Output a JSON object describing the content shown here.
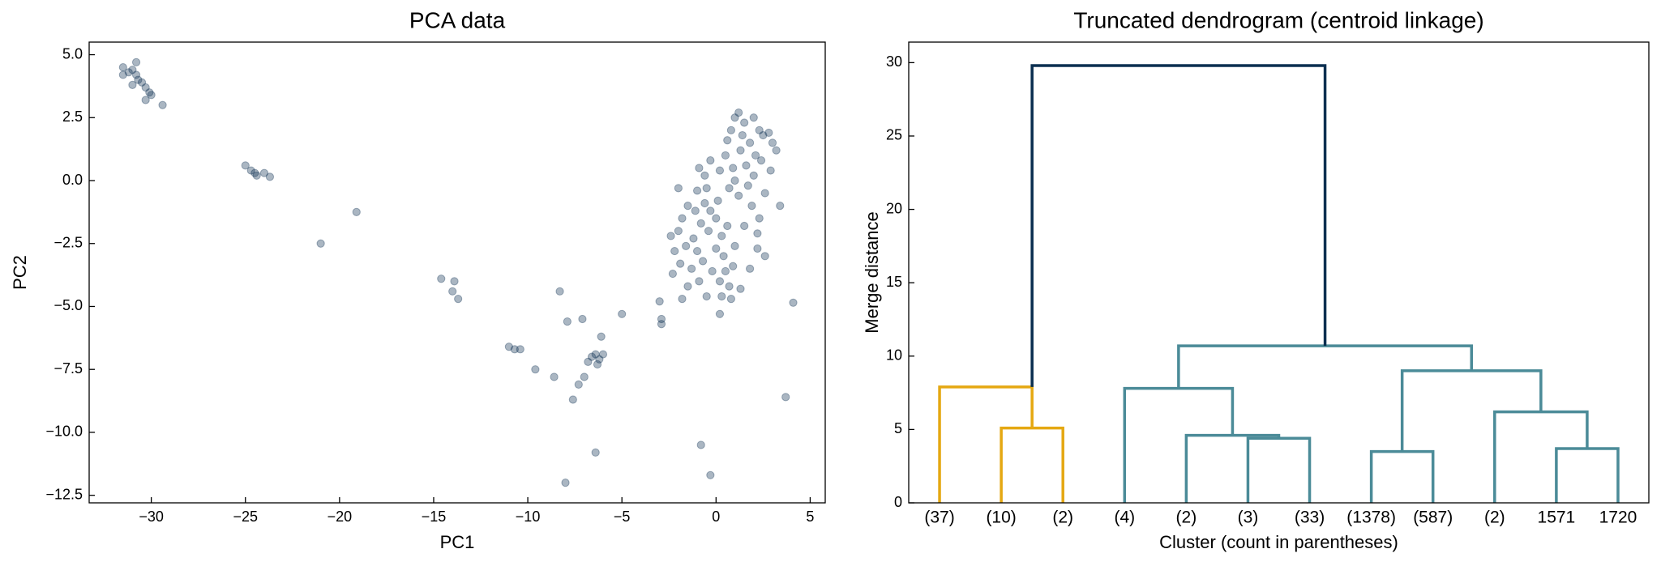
{
  "chart_data": [
    {
      "type": "scatter",
      "title": "PCA data",
      "xlabel": "PC1",
      "ylabel": "PC2",
      "color": "#0b2f50",
      "alpha": 0.35,
      "xlim": [
        -33.3,
        5.8
      ],
      "ylim": [
        -12.8,
        5.5
      ],
      "xticks": [
        {
          "value": -30,
          "label": "−30"
        },
        {
          "value": -25,
          "label": "−25"
        },
        {
          "value": -20,
          "label": "−20"
        },
        {
          "value": -15,
          "label": "−15"
        },
        {
          "value": -10,
          "label": "−10"
        },
        {
          "value": -5,
          "label": "−5"
        },
        0,
        5
      ],
      "yticks": [
        {
          "value": -12.5,
          "label": "−12.5"
        },
        {
          "value": -10,
          "label": "−10.0"
        },
        {
          "value": -7.5,
          "label": "−7.5"
        },
        {
          "value": -5,
          "label": "−5.0"
        },
        {
          "value": -2.5,
          "label": "−2.5"
        },
        {
          "value": 0,
          "label": "0.0"
        },
        {
          "value": 2.5,
          "label": "2.5"
        },
        {
          "value": 5,
          "label": "5.0"
        }
      ],
      "x": [
        -31.5,
        -31.5,
        -31,
        -30.8,
        -30.7,
        -30.5,
        -30.3,
        -30.1,
        -30,
        -30.3,
        -31,
        -29.4,
        -30.8,
        -31.2,
        -25,
        -24.7,
        -24.5,
        -24,
        -23.7,
        -24.4,
        -19.1,
        -21,
        -14.6,
        -13.9,
        -14,
        -13.7,
        -11,
        -10.7,
        -10.4,
        -9.6,
        -8.6,
        -8.3,
        -7.9,
        -7.1,
        -7.6,
        -7.3,
        -7,
        -6.6,
        -6.4,
        -6.2,
        -6,
        -6.3,
        -6.8,
        -6.1,
        -5,
        -6.4,
        -8,
        -0.8,
        -0.3,
        -2.9,
        -2.9,
        -3,
        3.7,
        4.1,
        3.4,
        2.2,
        2.6,
        1.8,
        0.5,
        1,
        1.2,
        1.5,
        0.8,
        2,
        2.3,
        1.8,
        2.5,
        2.8,
        3,
        3.2,
        2.1,
        1.3,
        0.9,
        1.6,
        2.4,
        0.2,
        0.6,
        1.4,
        2,
        1.7,
        2.6,
        1.9,
        2.3,
        1.2,
        0.7,
        -0.3,
        -0.6,
        -0.9,
        -0.5,
        0.1,
        1,
        2.9,
        2.2,
        1.5,
        -1.5,
        -1.8,
        -2,
        -1.2,
        -0.8,
        -0.3,
        0,
        -0.4,
        -1,
        -1.6,
        -2.2,
        -1.9,
        -1.3,
        -0.7,
        0,
        0.3,
        0.6,
        0.4,
        -0.2,
        0.2,
        0.7,
        -0.9,
        -1.5,
        -2.3,
        -1.1,
        0.5,
        1,
        0.9,
        1.3,
        -2.4,
        -0.6,
        -1,
        0.3,
        0.8,
        -0.5,
        -2,
        0.2,
        -1.8
      ],
      "values": [
        4.5,
        4.2,
        4.4,
        4.7,
        4,
        3.9,
        3.7,
        3.5,
        3.4,
        3.2,
        3.8,
        3,
        4.2,
        4.3,
        0.6,
        0.4,
        0.3,
        0.3,
        0.15,
        0.2,
        -1.25,
        -2.5,
        -3.9,
        -4,
        -4.4,
        -4.7,
        -6.6,
        -6.7,
        -6.7,
        -7.5,
        -7.8,
        -4.4,
        -5.6,
        -5.5,
        -8.7,
        -8.1,
        -7.8,
        -7,
        -6.9,
        -7.1,
        -6.9,
        -7.3,
        -7.2,
        -6.2,
        -5.3,
        -10.8,
        -12,
        -10.5,
        -11.7,
        -5.5,
        -5.7,
        -4.8,
        -8.6,
        -4.85,
        -1,
        -2.7,
        -3,
        -3.5,
        1,
        2.5,
        2.7,
        2.3,
        2,
        2.5,
        2,
        1.5,
        1.8,
        1.9,
        1.5,
        1.2,
        1,
        1.2,
        0.5,
        0.6,
        0.8,
        0.4,
        1.6,
        1.8,
        0.2,
        -0.2,
        -0.5,
        -1,
        -1.5,
        -0.6,
        -0.3,
        0.8,
        0.2,
        0.5,
        -0.3,
        -0.8,
        0,
        0.4,
        -2.1,
        -1.8,
        -1,
        -1.5,
        -2,
        -2.3,
        -1.7,
        -1.2,
        -1.5,
        -2,
        -2.8,
        -2.6,
        -2.8,
        -3.3,
        -3.5,
        -3.2,
        -2.7,
        -2.2,
        -1.8,
        -3,
        -3.6,
        -4,
        -4.2,
        -4,
        -4.2,
        -3.7,
        -1.2,
        -3.6,
        -2.6,
        -3.4,
        -4.3,
        -2.2,
        -0.9,
        -0.4,
        -4.6,
        -4.7,
        -4.6,
        -0.3,
        -5.3,
        -4.7
      ]
    },
    {
      "type": "dendrogram",
      "title": "Truncated dendrogram (centroid linkage)",
      "xlabel": "Cluster (count in parentheses)",
      "ylabel": "Merge distance",
      "categories": [
        "(37)",
        "(10)",
        "(2)",
        "(4)",
        "(2)",
        "(3)",
        "(33)",
        "(1378)",
        "(587)",
        "(2)",
        "1571",
        "1720"
      ],
      "xlim": [
        0,
        120
      ],
      "ylim": [
        0,
        31.4
      ],
      "yticks": [
        0,
        5,
        10,
        15,
        20,
        25,
        30
      ],
      "links": [
        {
          "x": [
            15,
            15,
            25,
            25
          ],
          "y": [
            0,
            5.1,
            5.1,
            0
          ],
          "color": "#e5a812"
        },
        {
          "x": [
            5,
            5,
            20,
            20
          ],
          "y": [
            0,
            7.9,
            7.9,
            5.1
          ],
          "color": "#e5a812"
        },
        {
          "x": [
            55,
            55,
            65,
            65
          ],
          "y": [
            0,
            4.4,
            4.4,
            0
          ],
          "color": "#4b8b98"
        },
        {
          "x": [
            45,
            45,
            60,
            60
          ],
          "y": [
            0,
            4.6,
            4.6,
            4.4
          ],
          "color": "#4b8b98"
        },
        {
          "x": [
            35,
            35,
            52.5,
            52.5
          ],
          "y": [
            0,
            7.8,
            7.8,
            4.6
          ],
          "color": "#4b8b98"
        },
        {
          "x": [
            75,
            75,
            85,
            85
          ],
          "y": [
            0,
            3.5,
            3.5,
            0
          ],
          "color": "#4b8b98"
        },
        {
          "x": [
            105,
            105,
            115,
            115
          ],
          "y": [
            0,
            3.7,
            3.7,
            0
          ],
          "color": "#4b8b98"
        },
        {
          "x": [
            95,
            95,
            110,
            110
          ],
          "y": [
            0,
            6.2,
            6.2,
            3.7
          ],
          "color": "#4b8b98"
        },
        {
          "x": [
            80,
            80,
            102.5,
            102.5
          ],
          "y": [
            3.5,
            9,
            9,
            6.2
          ],
          "color": "#4b8b98"
        },
        {
          "x": [
            43.75,
            43.75,
            91.25,
            91.25
          ],
          "y": [
            7.8,
            10.7,
            10.7,
            9
          ],
          "color": "#4b8b98"
        },
        {
          "x": [
            20,
            20,
            67.5,
            67.5
          ],
          "y": [
            7.9,
            29.8,
            29.8,
            10.7
          ],
          "color": "#0b2f50"
        }
      ]
    }
  ]
}
